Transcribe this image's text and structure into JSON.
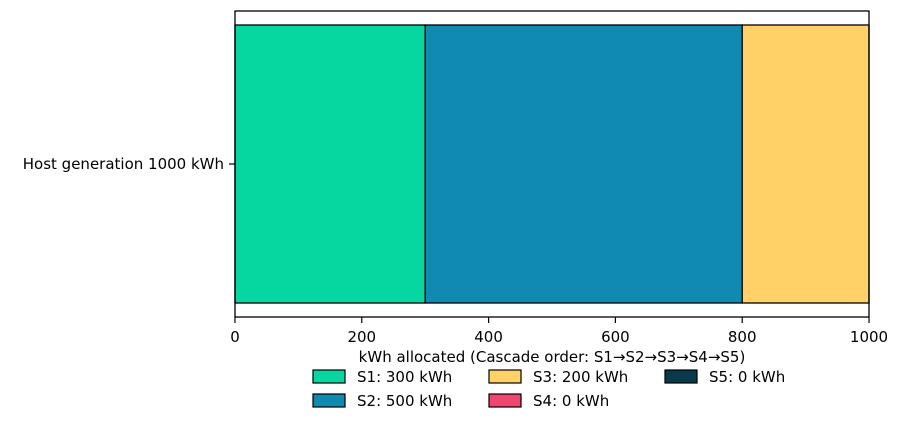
{
  "chart_data": {
    "type": "bar",
    "orientation": "horizontal",
    "stacked": true,
    "categories": [
      "Host generation 1000 kWh"
    ],
    "series": [
      {
        "name": "S1: 300 kWh",
        "values": [
          300
        ],
        "color": "#06d6a0"
      },
      {
        "name": "S2: 500 kWh",
        "values": [
          500
        ],
        "color": "#118ab2"
      },
      {
        "name": "S3: 200 kWh",
        "values": [
          200
        ],
        "color": "#ffd166"
      },
      {
        "name": "S4: 0 kWh",
        "values": [
          0
        ],
        "color": "#ef476f"
      },
      {
        "name": "S5: 0 kWh",
        "values": [
          0
        ],
        "color": "#073b4c"
      }
    ],
    "xlim": [
      0,
      1000
    ],
    "xticks": [
      0,
      200,
      400,
      600,
      800,
      1000
    ],
    "xlabel": "kWh allocated (Cascade order: S1→S2→S3→S4→S5)",
    "ylabel": "",
    "title": "",
    "grid": false,
    "legend_position": "bottom-center"
  }
}
